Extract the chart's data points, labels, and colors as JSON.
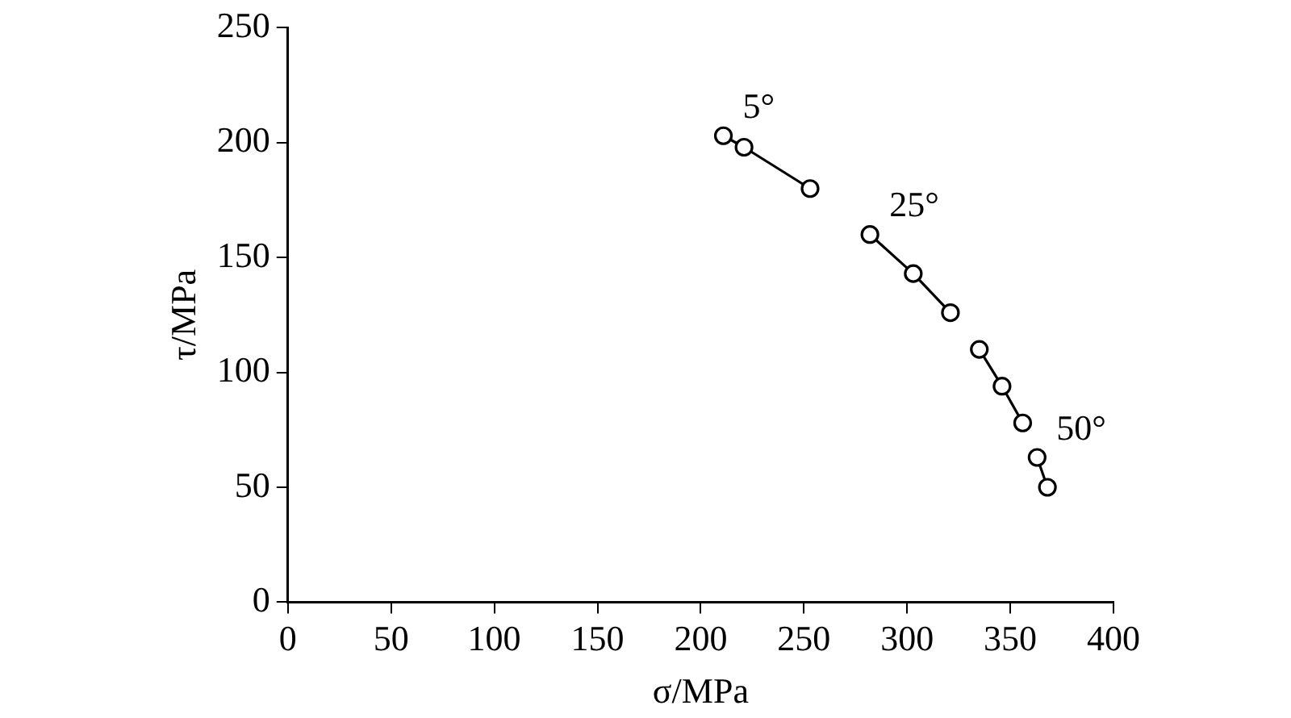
{
  "chart_data": {
    "type": "line",
    "xlabel": "σ/MPa",
    "ylabel": "τ/MPa",
    "xlim": [
      0,
      400
    ],
    "xticks": [
      0,
      50,
      100,
      150,
      200,
      250,
      300,
      350,
      400
    ],
    "ylim": [
      0,
      250
    ],
    "yticks": [
      0,
      50,
      100,
      150,
      200,
      250
    ],
    "grid": false,
    "legend": false,
    "marker": "circle",
    "line_style": "solid",
    "series": [
      {
        "name": "5°",
        "color": "#000000",
        "x": [
          211,
          221,
          253
        ],
        "values": [
          203,
          198,
          180
        ]
      },
      {
        "name": "25°",
        "color": "#000000",
        "x": [
          282,
          303,
          321
        ],
        "values": [
          160,
          143,
          126
        ]
      },
      {
        "color": "#000000",
        "x": [
          335,
          346,
          356
        ],
        "values": [
          110,
          94,
          78
        ]
      },
      {
        "name": "50°",
        "color": "#000000",
        "x": [
          363,
          368
        ],
        "values": [
          63,
          50
        ]
      }
    ]
  }
}
